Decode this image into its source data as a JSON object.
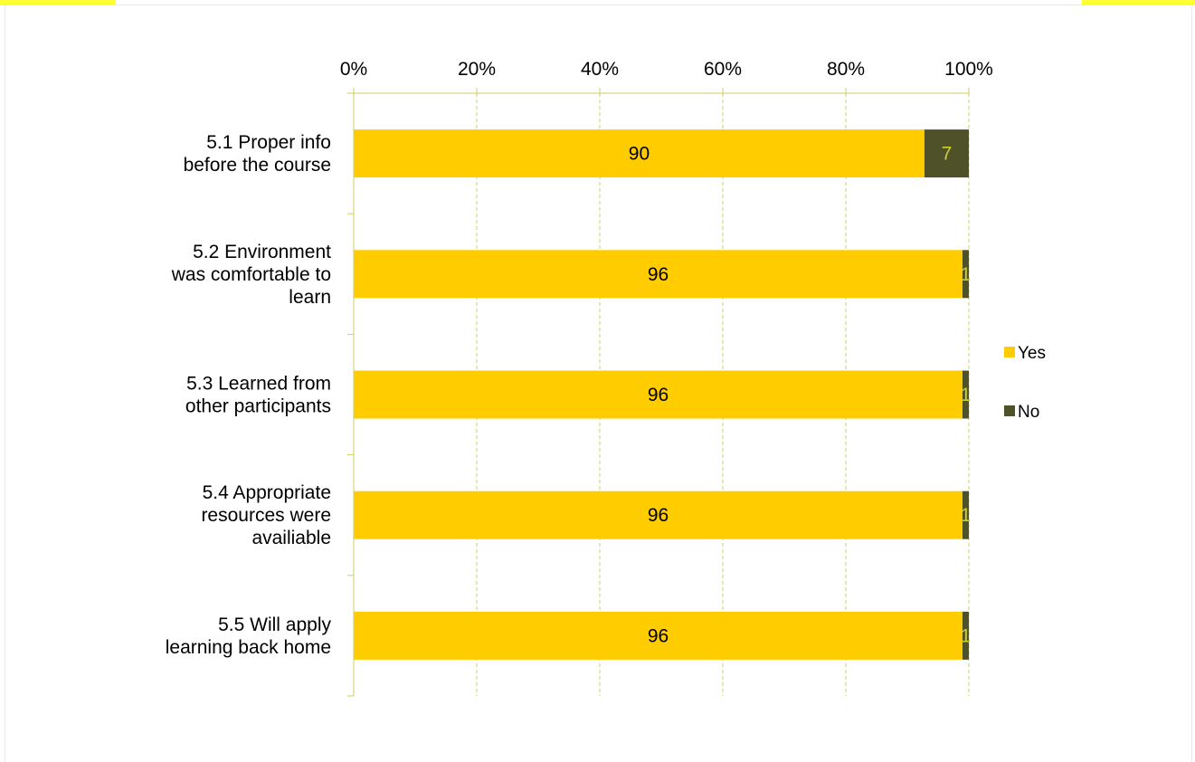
{
  "chart_data": {
    "type": "bar",
    "orientation": "horizontal",
    "stacked": "percent",
    "categories": [
      [
        "5.1 Proper info",
        "before the course"
      ],
      [
        "5.2 Environment",
        "was comfortable to",
        "learn"
      ],
      [
        "5.3 Learned from",
        "other participants"
      ],
      [
        "5.4 Appropriate",
        "resources were",
        "availiable"
      ],
      [
        "5.5 Will apply",
        "learning back home"
      ]
    ],
    "series": [
      {
        "name": "Yes",
        "values": [
          90,
          96,
          96,
          96,
          96
        ],
        "color": "#ffcc00",
        "label_color": "#000000"
      },
      {
        "name": "No",
        "values": [
          7,
          1,
          1,
          1,
          1
        ],
        "color": "#4f5228",
        "label_color": "#cccc33"
      }
    ],
    "xlim": [
      0,
      100
    ],
    "xticks": [
      "0%",
      "20%",
      "40%",
      "60%",
      "80%",
      "100%"
    ],
    "grid": true,
    "grid_color": "#cccc66",
    "legend_position": "right",
    "frame_color": "#ffff33"
  }
}
